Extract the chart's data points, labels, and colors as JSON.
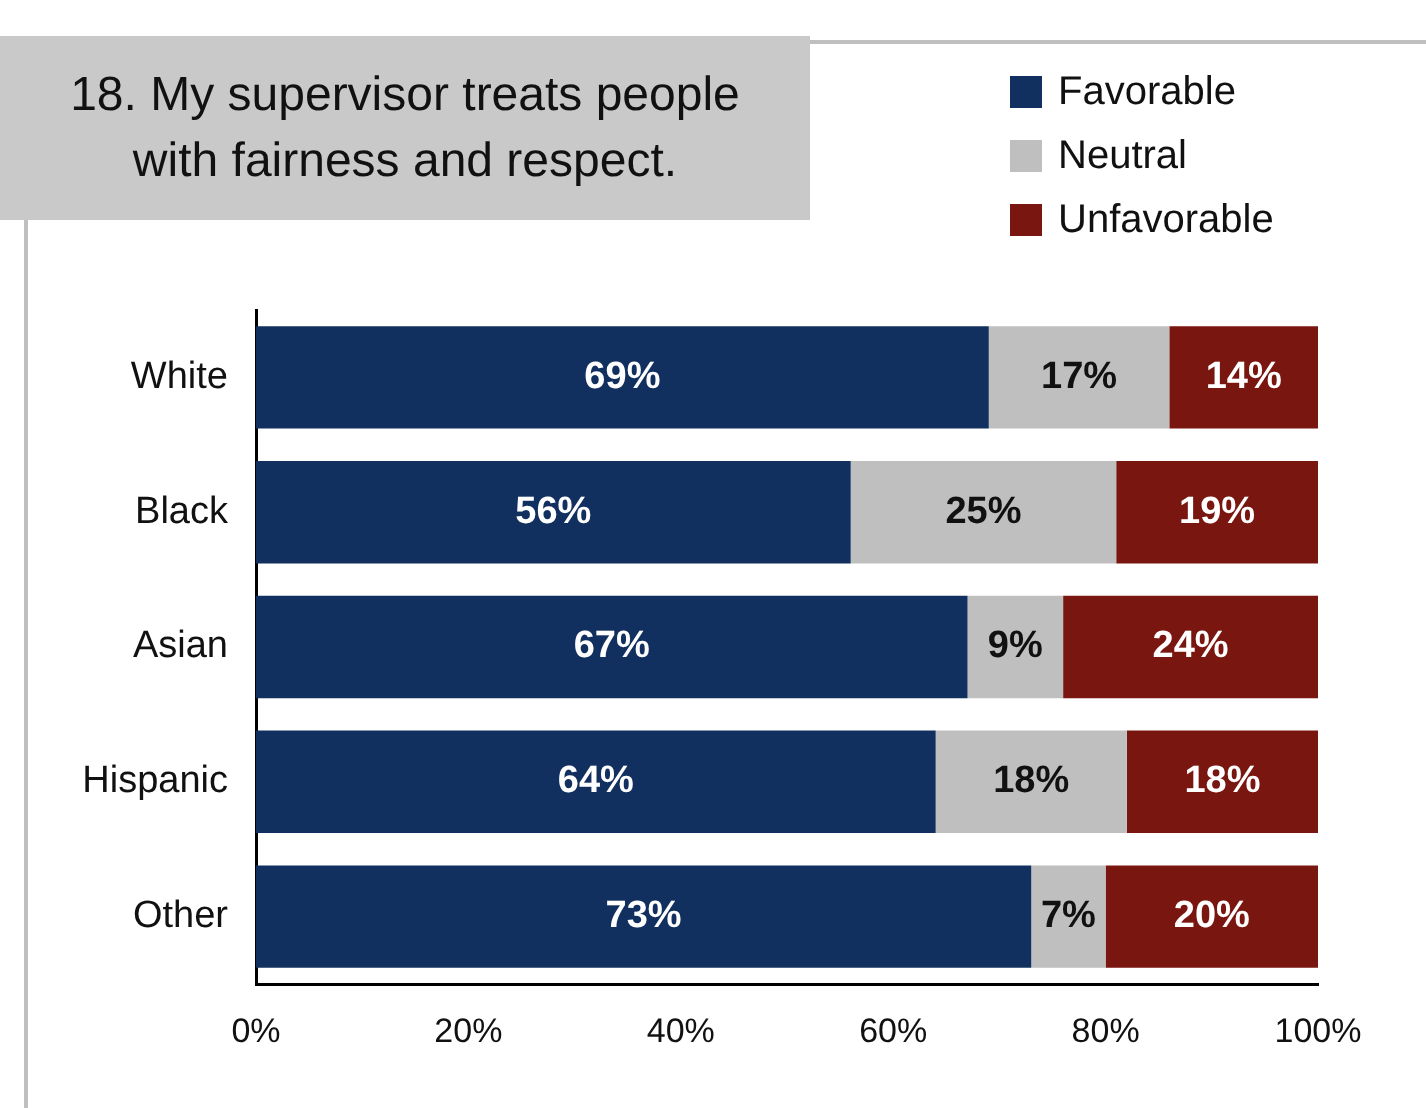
{
  "chart_data": {
    "type": "bar",
    "orientation": "horizontal",
    "stacked": true,
    "title": "18. My supervisor treats people with fairness and respect.",
    "categories": [
      "White",
      "Black",
      "Asian",
      "Hispanic",
      "Other"
    ],
    "series": [
      {
        "name": "Favorable",
        "color": "#12305f",
        "values": [
          69,
          56,
          67,
          64,
          73
        ],
        "value_labels": [
          "69%",
          "56%",
          "67%",
          "64%",
          "73%"
        ]
      },
      {
        "name": "Neutral",
        "color": "#bfbfbf",
        "values": [
          17,
          25,
          9,
          18,
          7
        ],
        "value_labels": [
          "17%",
          "25%",
          "9%",
          "18%",
          "7%"
        ]
      },
      {
        "name": "Unfavorable",
        "color": "#7a1610",
        "values": [
          14,
          19,
          24,
          18,
          20
        ],
        "value_labels": [
          "14%",
          "19%",
          "24%",
          "18%",
          "20%"
        ]
      }
    ],
    "xlim": [
      0,
      100
    ],
    "xticks": [
      {
        "value": 0,
        "label": "0%"
      },
      {
        "value": 20,
        "label": "20%"
      },
      {
        "value": 40,
        "label": "40%"
      },
      {
        "value": 60,
        "label": "60%"
      },
      {
        "value": 80,
        "label": "80%"
      },
      {
        "value": 100,
        "label": "100%"
      }
    ],
    "grid": false,
    "legend": "top right"
  }
}
